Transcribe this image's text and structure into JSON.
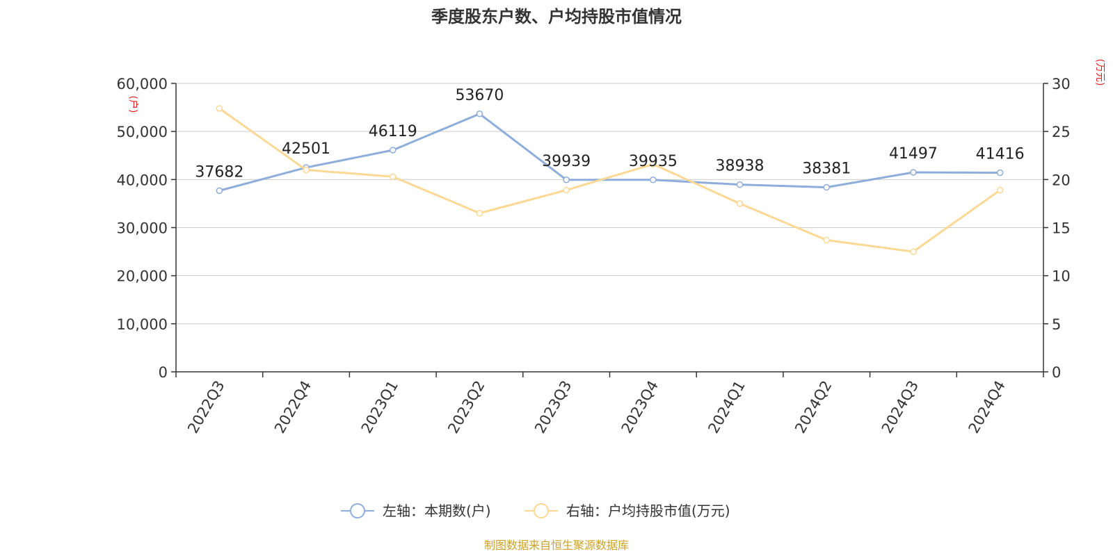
{
  "chart_data": {
    "type": "line",
    "title": "季度股东户数、户均持股市值情况",
    "categories": [
      "2022Q3",
      "2022Q4",
      "2023Q1",
      "2023Q2",
      "2023Q3",
      "2023Q4",
      "2024Q1",
      "2024Q2",
      "2024Q3",
      "2024Q4"
    ],
    "series": [
      {
        "name": "左轴：本期数(户)",
        "axis": "left",
        "color": "#8eaddb",
        "values": [
          37682,
          42501,
          46119,
          53670,
          39939,
          39935,
          38938,
          38381,
          41497,
          41416
        ],
        "labels": [
          "37682",
          "42501",
          "46119",
          "53670",
          "39939",
          "39935",
          "38938",
          "38381",
          "41497",
          "41416"
        ]
      },
      {
        "name": "右轴：户均持股市值(万元)",
        "axis": "right",
        "color": "#fcd895",
        "values": [
          27.4,
          21.0,
          20.3,
          16.5,
          18.9,
          21.6,
          17.5,
          13.7,
          12.5,
          18.9
        ]
      }
    ],
    "y_left": {
      "label": "(户)",
      "min": 0,
      "max": 60000,
      "ticks": [
        0,
        10000,
        20000,
        30000,
        40000,
        50000,
        60000
      ],
      "tick_labels": [
        "0",
        "10,000",
        "20,000",
        "30,000",
        "40,000",
        "50,000",
        "60,000"
      ]
    },
    "y_right": {
      "label": "(万元)",
      "min": 0,
      "max": 30,
      "ticks": [
        0,
        5,
        10,
        15,
        20,
        25,
        30
      ],
      "tick_labels": [
        "0",
        "5",
        "10",
        "15",
        "20",
        "25",
        "30"
      ]
    },
    "grid": true,
    "legend_position": "bottom-center",
    "source": "制图数据来自恒生聚源数据库",
    "colors": {
      "axis_label": "#e02020",
      "source": "#c9a227",
      "grid": "#cccccc",
      "axis": "#333333"
    }
  }
}
